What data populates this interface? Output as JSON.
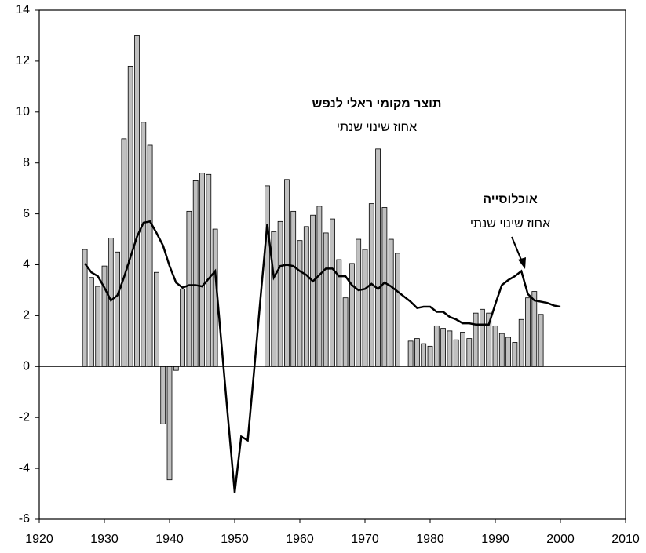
{
  "chart_data": {
    "type": "bar",
    "xlim": [
      1920,
      2010
    ],
    "xticks": [
      1920,
      1930,
      1940,
      1950,
      1960,
      1970,
      1980,
      1990,
      2000,
      2010
    ],
    "ylim": [
      -6,
      14
    ],
    "yticks": [
      -6,
      -4,
      -2,
      0,
      2,
      4,
      6,
      8,
      10,
      12,
      14
    ],
    "unit_label": "אחוז שינוי שנתי",
    "series": [
      {
        "name": "תוצר מקומי ראלי לנפש",
        "type": "bar",
        "color": "#c0c0c0",
        "x": [
          1927,
          1928,
          1929,
          1930,
          1931,
          1932,
          1933,
          1934,
          1935,
          1936,
          1937,
          1938,
          1939,
          1940,
          1941,
          1942,
          1943,
          1944,
          1945,
          1946,
          1947,
          1955,
          1956,
          1957,
          1958,
          1959,
          1960,
          1961,
          1962,
          1963,
          1964,
          1965,
          1966,
          1967,
          1968,
          1969,
          1970,
          1971,
          1972,
          1973,
          1974,
          1975,
          1977,
          1978,
          1979,
          1980,
          1981,
          1982,
          1983,
          1984,
          1985,
          1986,
          1987,
          1988,
          1989,
          1990,
          1991,
          1992,
          1993,
          1994,
          1995,
          1996,
          1997
        ],
        "values": [
          4.6,
          3.5,
          3.15,
          3.95,
          5.05,
          4.5,
          8.95,
          11.8,
          13.0,
          9.6,
          8.7,
          3.7,
          -2.25,
          -4.45,
          -0.15,
          3.05,
          6.1,
          7.3,
          7.6,
          7.55,
          5.4,
          7.1,
          5.3,
          5.7,
          7.35,
          6.1,
          4.95,
          5.5,
          5.95,
          6.3,
          5.25,
          5.8,
          4.2,
          2.7,
          4.05,
          5.0,
          4.6,
          6.4,
          8.55,
          6.25,
          5.0,
          4.45,
          1.0,
          1.1,
          0.9,
          0.8,
          1.6,
          1.5,
          1.4,
          1.05,
          1.35,
          1.1,
          2.1,
          2.25,
          2.1,
          1.6,
          1.3,
          1.15,
          0.95,
          1.85,
          2.7,
          2.95,
          2.05
        ]
      },
      {
        "name": "אוכלוסייה",
        "type": "line",
        "color": "#000000",
        "x": [
          1927,
          1928,
          1929,
          1930,
          1931,
          1932,
          1933,
          1934,
          1935,
          1936,
          1937,
          1938,
          1939,
          1940,
          1941,
          1942,
          1943,
          1944,
          1945,
          1946,
          1947,
          1948,
          1949,
          1950,
          1951,
          1952,
          1953,
          1954,
          1955,
          1956,
          1957,
          1958,
          1959,
          1960,
          1961,
          1962,
          1963,
          1964,
          1965,
          1966,
          1967,
          1968,
          1969,
          1970,
          1971,
          1972,
          1973,
          1974,
          1975,
          1976,
          1977,
          1978,
          1979,
          1980,
          1981,
          1982,
          1983,
          1984,
          1985,
          1986,
          1987,
          1988,
          1989,
          1990,
          1991,
          1992,
          1993,
          1994,
          1995,
          1996,
          1997,
          1998,
          1999,
          2000
        ],
        "values": [
          4.05,
          3.7,
          3.55,
          3.1,
          2.6,
          2.8,
          3.5,
          4.3,
          5.1,
          5.65,
          5.7,
          5.25,
          4.75,
          3.95,
          3.3,
          3.1,
          3.2,
          3.2,
          3.15,
          3.45,
          3.75,
          0.8,
          -2.1,
          -4.95,
          -2.75,
          -2.9,
          -0.1,
          2.8,
          5.6,
          3.5,
          3.95,
          4.0,
          3.95,
          3.75,
          3.6,
          3.35,
          3.6,
          3.85,
          3.85,
          3.55,
          3.55,
          3.2,
          3.0,
          3.05,
          3.25,
          3.05,
          3.3,
          3.15,
          2.95,
          2.75,
          2.55,
          2.3,
          2.35,
          2.35,
          2.15,
          2.15,
          1.95,
          1.85,
          1.7,
          1.7,
          1.65,
          1.65,
          1.65,
          2.45,
          3.2,
          3.4,
          3.55,
          3.75,
          2.85,
          2.6,
          2.55,
          2.5,
          2.4,
          2.35
        ]
      }
    ]
  }
}
